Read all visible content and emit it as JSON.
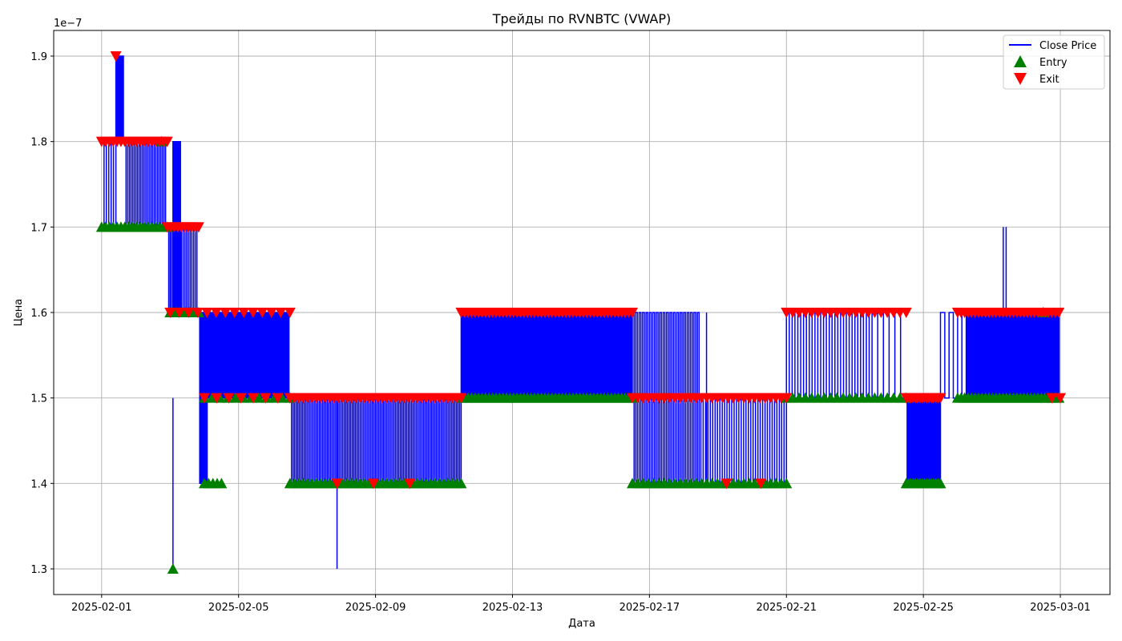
{
  "chart_data": {
    "type": "line",
    "title": "Трейды по RVNBTC (VWAP)",
    "xlabel": "Дата",
    "ylabel": "Цена",
    "y_offset_label": "1e−7",
    "y_scale": 1e-07,
    "ylim": [
      1.27,
      1.93
    ],
    "xlim": [
      "2025-01-30T14:24",
      "2025-03-02T10:48"
    ],
    "grid": true,
    "legend_placement": "top-right",
    "x_ticks": [
      "2025-02-01",
      "2025-02-05",
      "2025-02-09",
      "2025-02-13",
      "2025-02-17",
      "2025-02-21",
      "2025-02-25",
      "2025-03-01"
    ],
    "y_ticks": [
      1.3,
      1.4,
      1.5,
      1.6,
      1.7,
      1.8,
      1.9
    ],
    "colors": {
      "close": "#0000ff",
      "entry": "#008000",
      "exit": "#ff0000",
      "grid": "#b0b0b0"
    },
    "series": [
      {
        "name": "Close Price",
        "kind": "line",
        "segments": [
          {
            "from": "2025-02-01T00:00",
            "to": "2025-02-01T10:00",
            "low": 1.7,
            "high": 1.8,
            "switches": 6
          },
          {
            "from": "2025-02-01T10:00",
            "to": "2025-02-01T16:00",
            "low": 1.8,
            "high": 1.9,
            "switches": 8
          },
          {
            "from": "2025-02-01T16:00",
            "to": "2025-02-02T22:00",
            "low": 1.7,
            "high": 1.8,
            "switches": 26
          },
          {
            "from": "2025-02-02T22:00",
            "to": "2025-02-03T02:00",
            "low": 1.6,
            "high": 1.7,
            "switches": 4
          },
          {
            "from": "2025-02-03T02:00",
            "to": "2025-02-03T08:00",
            "low": 1.6,
            "high": 1.8,
            "switches": 8
          },
          {
            "from": "2025-02-03T08:00",
            "to": "2025-02-03T20:00",
            "low": 1.6,
            "high": 1.7,
            "switches": 10
          },
          {
            "from": "2025-02-03T20:00",
            "to": "2025-02-04T02:00",
            "low": 1.4,
            "high": 1.6,
            "switches": 8
          },
          {
            "from": "2025-02-04T02:00",
            "to": "2025-02-06T12:00",
            "low": 1.5,
            "high": 1.6,
            "switches": 90
          },
          {
            "from": "2025-02-06T12:00",
            "to": "2025-02-11T12:00",
            "low": 1.4,
            "high": 1.5,
            "switches": 110
          },
          {
            "from": "2025-02-11T12:00",
            "to": "2025-02-16T12:00",
            "low": 1.5,
            "high": 1.6,
            "switches": 150
          },
          {
            "from": "2025-02-16T12:00",
            "to": "2025-02-18T12:00",
            "low": 1.4,
            "high": 1.6,
            "switches": 40
          },
          {
            "from": "2025-02-18T12:00",
            "to": "2025-02-21T00:00",
            "low": 1.4,
            "high": 1.5,
            "switches": 36
          },
          {
            "from": "2025-02-21T00:00",
            "to": "2025-02-23T12:00",
            "low": 1.5,
            "high": 1.6,
            "switches": 30
          },
          {
            "from": "2025-02-23T12:00",
            "to": "2025-02-24T12:00",
            "low": 1.5,
            "high": 1.6,
            "switches": 6
          },
          {
            "from": "2025-02-24T12:00",
            "to": "2025-02-25T12:00",
            "low": 1.4,
            "high": 1.5,
            "switches": 40
          },
          {
            "from": "2025-02-25T12:00",
            "to": "2025-02-26T06:00",
            "low": 1.5,
            "high": 1.6,
            "switches": 6
          },
          {
            "from": "2025-02-26T06:00",
            "to": "2025-02-28T00:00",
            "low": 1.5,
            "high": 1.6,
            "switches": 60
          },
          {
            "from": "2025-02-28T00:00",
            "to": "2025-03-01T00:00",
            "low": 1.5,
            "high": 1.6,
            "switches": 30
          }
        ],
        "spikes": [
          {
            "t": "2025-02-03T02:00",
            "low": 1.3,
            "high": 1.5
          },
          {
            "t": "2025-02-07T21:00",
            "low": 1.3,
            "high": 1.5
          },
          {
            "t": "2025-02-18T16:00",
            "low": 1.4,
            "high": 1.6
          },
          {
            "t": "2025-02-27T08:00",
            "low": 1.6,
            "high": 1.7
          },
          {
            "t": "2025-02-27T10:00",
            "low": 1.6,
            "high": 1.7
          }
        ]
      },
      {
        "name": "Entry",
        "kind": "marker-up",
        "clusters": [
          {
            "from": "2025-02-01T00:00",
            "to": "2025-02-02T22:00",
            "y": 1.7,
            "count": 18
          },
          {
            "from": "2025-02-03T00:00",
            "to": "2025-02-03T20:00",
            "y": 1.6,
            "count": 10
          },
          {
            "from": "2025-02-02T18:00",
            "to": "2025-02-02T18:00",
            "y": 1.8,
            "count": 1
          },
          {
            "from": "2025-02-04T00:00",
            "to": "2025-02-06T12:00",
            "y": 1.5,
            "count": 12
          },
          {
            "from": "2025-02-04T00:00",
            "to": "2025-02-04T12:00",
            "y": 1.4,
            "count": 5
          },
          {
            "from": "2025-02-03T02:00",
            "to": "2025-02-03T02:00",
            "y": 1.3,
            "count": 1
          },
          {
            "from": "2025-02-06T12:00",
            "to": "2025-02-11T12:00",
            "y": 1.4,
            "count": 40
          },
          {
            "from": "2025-02-11T12:00",
            "to": "2025-02-16T12:00",
            "y": 1.5,
            "count": 50
          },
          {
            "from": "2025-02-16T12:00",
            "to": "2025-02-21T00:00",
            "y": 1.4,
            "count": 30
          },
          {
            "from": "2025-02-21T00:00",
            "to": "2025-02-24T12:00",
            "y": 1.5,
            "count": 20
          },
          {
            "from": "2025-02-24T12:00",
            "to": "2025-02-25T12:00",
            "y": 1.4,
            "count": 16
          },
          {
            "from": "2025-02-26T00:00",
            "to": "2025-02-28T23:00",
            "y": 1.5,
            "count": 30
          },
          {
            "from": "2025-02-28T12:00",
            "to": "2025-02-28T12:00",
            "y": 1.6,
            "count": 1
          }
        ]
      },
      {
        "name": "Exit",
        "kind": "marker-down",
        "clusters": [
          {
            "from": "2025-02-01T00:00",
            "to": "2025-02-02T22:00",
            "y": 1.8,
            "count": 18
          },
          {
            "from": "2025-02-01T10:00",
            "to": "2025-02-01T10:00",
            "y": 1.9,
            "count": 1
          },
          {
            "from": "2025-02-02T22:00",
            "to": "2025-02-03T20:00",
            "y": 1.7,
            "count": 10
          },
          {
            "from": "2025-02-03T00:00",
            "to": "2025-02-06T12:00",
            "y": 1.6,
            "count": 14
          },
          {
            "from": "2025-02-04T00:00",
            "to": "2025-02-06T12:00",
            "y": 1.5,
            "count": 8
          },
          {
            "from": "2025-02-06T12:00",
            "to": "2025-02-11T12:00",
            "y": 1.5,
            "count": 40
          },
          {
            "from": "2025-02-07T21:00",
            "to": "2025-02-10T00:00",
            "y": 1.4,
            "count": 3
          },
          {
            "from": "2025-02-11T12:00",
            "to": "2025-02-16T12:00",
            "y": 1.6,
            "count": 50
          },
          {
            "from": "2025-02-16T12:00",
            "to": "2025-02-21T00:00",
            "y": 1.5,
            "count": 30
          },
          {
            "from": "2025-02-19T06:00",
            "to": "2025-02-20T06:00",
            "y": 1.4,
            "count": 2
          },
          {
            "from": "2025-02-21T00:00",
            "to": "2025-02-24T12:00",
            "y": 1.6,
            "count": 20
          },
          {
            "from": "2025-02-24T12:00",
            "to": "2025-02-25T12:00",
            "y": 1.5,
            "count": 16
          },
          {
            "from": "2025-02-26T00:00",
            "to": "2025-02-28T23:00",
            "y": 1.6,
            "count": 30
          },
          {
            "from": "2025-02-28T18:00",
            "to": "2025-03-01T00:00",
            "y": 1.5,
            "count": 2
          }
        ]
      }
    ]
  }
}
